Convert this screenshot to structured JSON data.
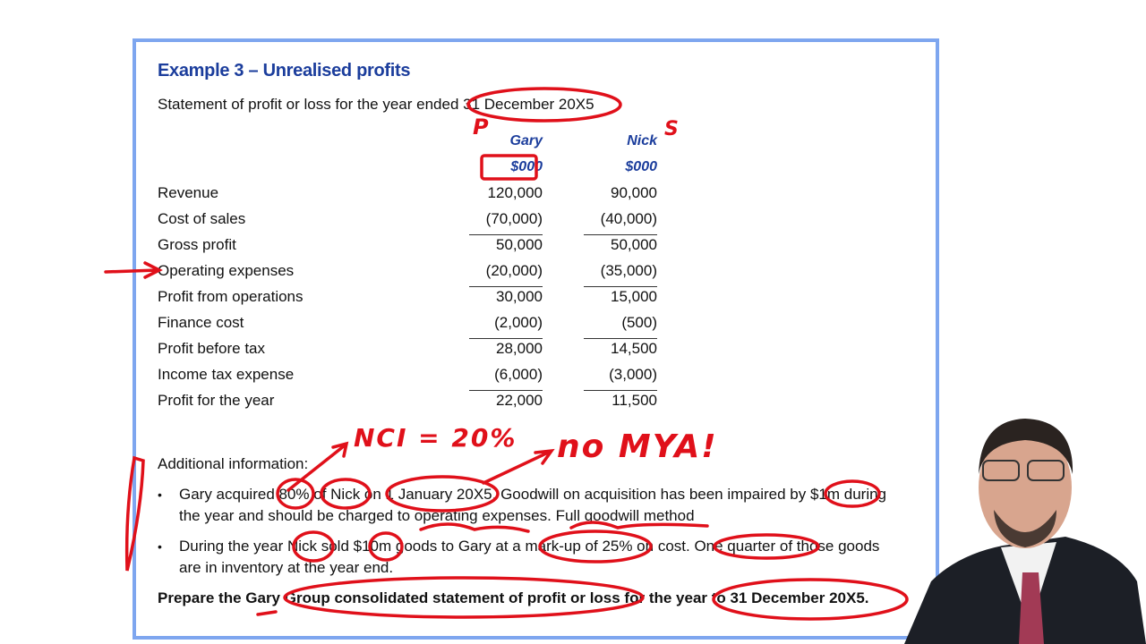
{
  "slide": {
    "title": "Example 3 – Unrealised profits",
    "subtitle": "Statement of profit or loss for the year ended 31 December 20X5",
    "columns": [
      {
        "name": "Gary",
        "unit": "$000"
      },
      {
        "name": "Nick",
        "unit": "$000"
      }
    ],
    "rows": [
      {
        "label": "Revenue",
        "gary": "120,000",
        "nick": "90,000"
      },
      {
        "label": "Cost of sales",
        "gary": "(70,000)",
        "nick": "(40,000)"
      },
      {
        "label": "Gross profit",
        "gary": "50,000",
        "nick": "50,000"
      },
      {
        "label": "Operating expenses",
        "gary": "(20,000)",
        "nick": "(35,000)"
      },
      {
        "label": "Profit from operations",
        "gary": "30,000",
        "nick": "15,000"
      },
      {
        "label": "Finance cost",
        "gary": "(2,000)",
        "nick": "(500)"
      },
      {
        "label": "Profit before tax",
        "gary": "28,000",
        "nick": "14,500"
      },
      {
        "label": "Income tax expense",
        "gary": "(6,000)",
        "nick": "(3,000)"
      },
      {
        "label": "Profit for the year",
        "gary": "22,000",
        "nick": "11,500"
      }
    ],
    "additional_heading": "Additional information:",
    "bullet_char": "•",
    "bullets": [
      {
        "line1": "Gary acquired 80% of Nick on 1 January 20X5. Goodwill on acquisition has been impaired by $1m during",
        "line2": "the year and should be charged to operating expenses. Full goodwill method"
      },
      {
        "line1": "During the year Nick sold $10m goods to Gary at a mark-up of 25% on cost. One quarter of those goods",
        "line2": "are in inventory at the year end."
      }
    ],
    "instruction": "Prepare the Gary Group consolidated statement of profit or loss for the year to 31 December 20X5."
  },
  "annotations": {
    "color": "#e0101a",
    "parent_mark": "P",
    "sub_mark": "S",
    "nci_note": "NCI = 20%",
    "mya_note": "no MYA!"
  },
  "colors": {
    "frame": "#7ea6ef",
    "title": "#1b3d9c"
  }
}
